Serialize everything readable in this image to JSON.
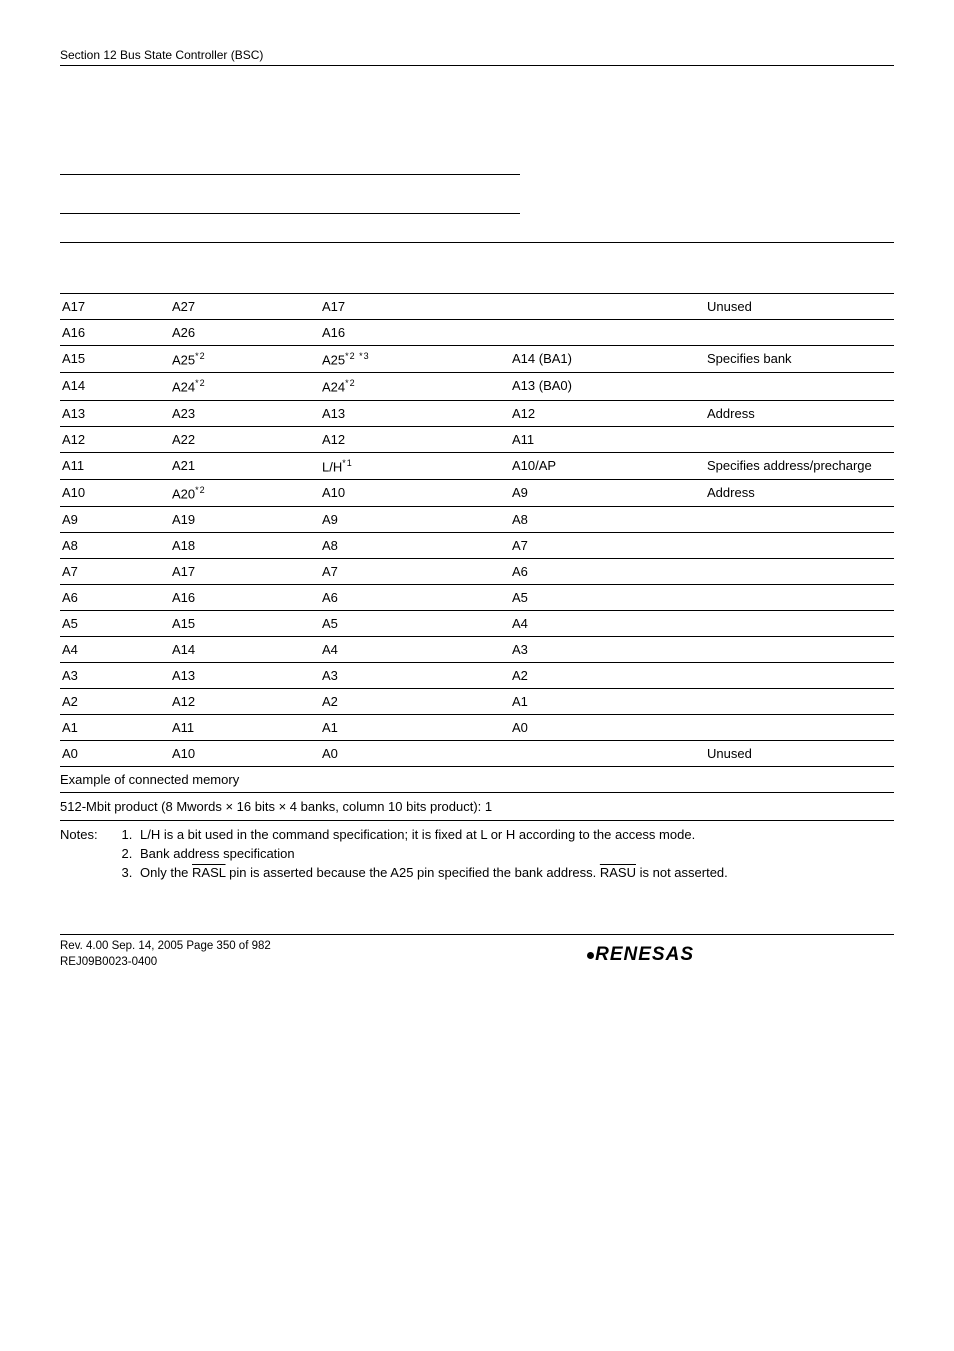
{
  "header": {
    "section": "Section 12   Bus State Controller (BSC)"
  },
  "rows": [
    {
      "c0": "A17",
      "c1": "A27",
      "c2": "A17",
      "c3": "",
      "c4": "Unused",
      "top": true
    },
    {
      "c0": "A16",
      "c1": "A26",
      "c2": "A16",
      "c3": "",
      "c4": "",
      "top": true
    },
    {
      "c0": "A15",
      "c1": "A25",
      "c1s": "*2",
      "c2": "A25",
      "c2s": "*2 *3",
      "c3": "A14 (BA1)",
      "c4": "Specifies bank",
      "top": true
    },
    {
      "c0": "A14",
      "c1": "A24",
      "c1s": "*2",
      "c2": "A24",
      "c2s": "*2",
      "c3": "A13 (BA0)",
      "c4": "",
      "top": true
    },
    {
      "c0": "A13",
      "c1": "A23",
      "c2": "A13",
      "c3": "A12",
      "c4": "Address",
      "top": true
    },
    {
      "c0": "A12",
      "c1": "A22",
      "c2": "A12",
      "c3": "A11",
      "c4": "",
      "top": true
    },
    {
      "c0": "A11",
      "c1": "A21",
      "c2": "L/H",
      "c2s": "*1",
      "c3": "A10/AP",
      "c4": "Specifies address/precharge",
      "top": true
    },
    {
      "c0": "A10",
      "c1": "A20",
      "c1s": "*2",
      "c2": "A10",
      "c3": "A9",
      "c4": "Address",
      "top": true
    },
    {
      "c0": "A9",
      "c1": "A19",
      "c2": "A9",
      "c3": "A8",
      "c4": "",
      "top": true
    },
    {
      "c0": "A8",
      "c1": "A18",
      "c2": "A8",
      "c3": "A7",
      "c4": "",
      "top": true
    },
    {
      "c0": "A7",
      "c1": "A17",
      "c2": "A7",
      "c3": "A6",
      "c4": "",
      "top": true
    },
    {
      "c0": "A6",
      "c1": "A16",
      "c2": "A6",
      "c3": "A5",
      "c4": "",
      "top": true
    },
    {
      "c0": "A5",
      "c1": "A15",
      "c2": "A5",
      "c3": "A4",
      "c4": "",
      "top": true
    },
    {
      "c0": "A4",
      "c1": "A14",
      "c2": "A4",
      "c3": "A3",
      "c4": "",
      "top": true
    },
    {
      "c0": "A3",
      "c1": "A13",
      "c2": "A3",
      "c3": "A2",
      "c4": "",
      "top": true
    },
    {
      "c0": "A2",
      "c1": "A12",
      "c2": "A2",
      "c3": "A1",
      "c4": "",
      "top": true
    },
    {
      "c0": "A1",
      "c1": "A11",
      "c2": "A1",
      "c3": "A0",
      "c4": "",
      "top": true
    },
    {
      "c0": "A0",
      "c1": "A10",
      "c2": "A0",
      "c3": "",
      "c4": "Unused",
      "top": true
    }
  ],
  "example": "Example of connected memory",
  "product": "512-Mbit product (8 Mwords × 16 bits × 4 banks, column 10 bits product): 1",
  "notes": {
    "label": "Notes:",
    "items": [
      "L/H is a bit used in the command specification; it is fixed at L or H according to the access mode.",
      "Bank address specification",
      "Only the {RASL} pin is asserted because the A25 pin specified the bank address. {RASU} is not asserted."
    ]
  },
  "footer": {
    "line1": "Rev. 4.00  Sep. 14, 2005  Page 350 of 982",
    "line2": "REJ09B0023-0400",
    "brand": "RENESAS"
  }
}
